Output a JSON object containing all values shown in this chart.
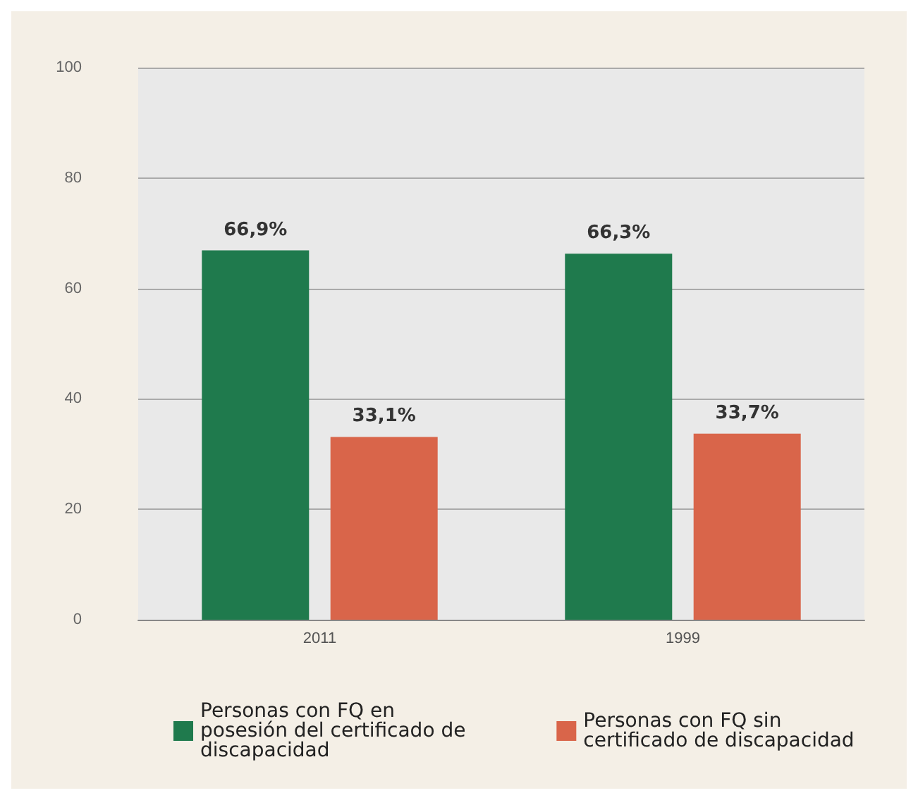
{
  "chart_data": {
    "type": "bar",
    "categories": [
      "2011",
      "1999"
    ],
    "series": [
      {
        "name": "Personas con FQ en posesión del certificado de discapacidad",
        "color": "#1f7a4d",
        "values": [
          66.9,
          66.3
        ],
        "value_labels": [
          "66,9%",
          "66,3%"
        ]
      },
      {
        "name": "Personas con FQ sin certificado de discapacidad",
        "color": "#d9654a",
        "values": [
          33.1,
          33.7
        ],
        "value_labels": [
          "33,1%",
          "33,7%"
        ]
      }
    ],
    "ylim": [
      0,
      100
    ],
    "yticks": [
      0,
      20,
      40,
      60,
      80,
      100
    ],
    "grid": "y",
    "legend": "bottom"
  }
}
